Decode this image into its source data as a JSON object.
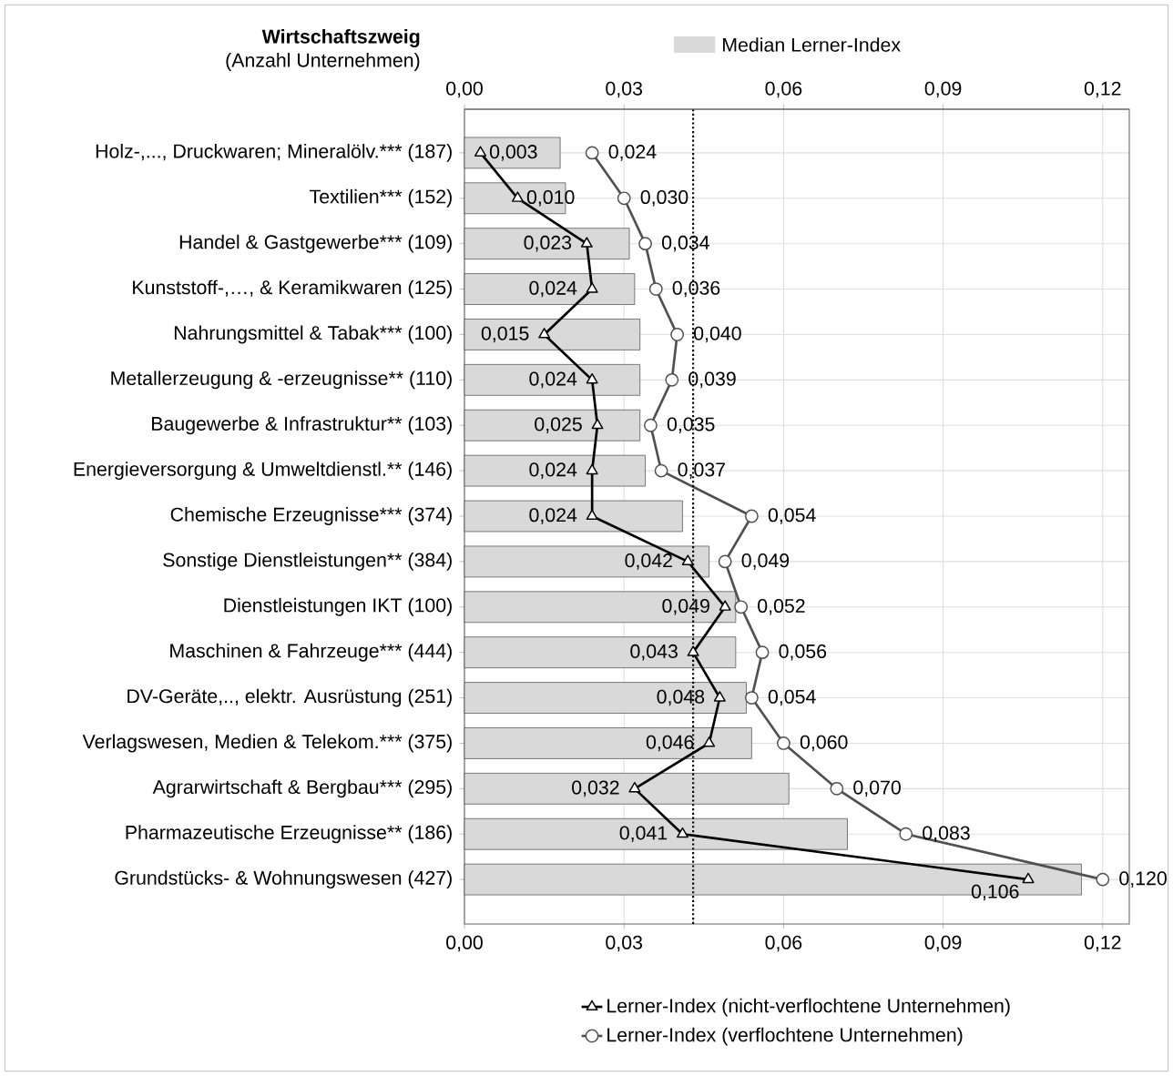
{
  "chart_data": {
    "type": "bar",
    "orientation": "horizontal",
    "ylabel": "Wirtschaftszweig",
    "annotations": [
      "(Anzahl Unternehmen)"
    ],
    "categories": [
      "Holz-,..., Druckwaren; Mineralölv.*** (187)",
      "Textilien*** (152)",
      "Handel & Gastgewerbe*** (109)",
      "Kunststoff-,…, & Keramikwaren (125)",
      "Nahrungsmittel & Tabak*** (100)",
      "Metallerzeugung & -erzeugnisse** (110)",
      "Baugewerbe & Infrastruktur** (103)",
      "Energieversorgung & Umweltdienstl.** (146)",
      "Chemische Erzeugnisse*** (374)",
      "Sonstige Dienstleistungen** (384)",
      "Dienstleistungen IKT (100)",
      "Maschinen & Fahrzeuge*** (444)",
      "DV-Geräte,.., elektr. Ausrüstung (251)",
      "Verlagswesen, Medien & Telekom.*** (375)",
      "Agrarwirtschaft & Bergbau*** (295)",
      "Pharmazeutische Erzeugnisse** (186)",
      "Grundstücks- & Wohnungswesen (427)"
    ],
    "series": [
      {
        "name": "Median Lerner-Index",
        "type": "bar",
        "color": "#d9d9d9",
        "values": [
          0.018,
          0.019,
          0.031,
          0.032,
          0.033,
          0.033,
          0.033,
          0.034,
          0.041,
          0.046,
          0.051,
          0.051,
          0.053,
          0.054,
          0.061,
          0.072,
          0.116
        ]
      },
      {
        "name": "Lerner-Index (nicht-verflochtene Unternehmen)",
        "type": "line",
        "color": "#000000",
        "marker": "triangle",
        "values": [
          0.003,
          0.01,
          0.023,
          0.024,
          0.015,
          0.024,
          0.025,
          0.024,
          0.024,
          0.042,
          0.049,
          0.043,
          0.048,
          0.046,
          0.032,
          0.041,
          0.106
        ],
        "value_labels": [
          "0,003",
          "0,010",
          "0,023",
          "0,024",
          "0,015",
          "0,024",
          "0,025",
          "0,024",
          "0,024",
          "0,042",
          "0,049",
          "0,043",
          "0,048",
          "0,046",
          "0,032",
          "0,041",
          "0,106"
        ]
      },
      {
        "name": "Lerner-Index (verflochtene Unternehmen)",
        "type": "line",
        "color": "#505050",
        "marker": "circle",
        "values": [
          0.024,
          0.03,
          0.034,
          0.036,
          0.04,
          0.039,
          0.035,
          0.037,
          0.054,
          0.049,
          0.052,
          0.056,
          0.054,
          0.06,
          0.07,
          0.083,
          0.12
        ],
        "value_labels": [
          "0,024",
          "0,030",
          "0,034",
          "0,036",
          "0,040",
          "0,039",
          "0,035",
          "0,037",
          "0,054",
          "0,049",
          "0,052",
          "0,056",
          "0,054",
          "0,060",
          "0,070",
          "0,083",
          "0,120"
        ]
      }
    ],
    "xlim": [
      0,
      0.125
    ],
    "xticks": [
      {
        "value": 0,
        "label": "0,00"
      },
      {
        "value": 0.03,
        "label": "0,03"
      },
      {
        "value": 0.06,
        "label": "0,06"
      },
      {
        "value": 0.09,
        "label": "0,09"
      },
      {
        "value": 0.12,
        "label": "0,12"
      }
    ],
    "x2lim": [
      0,
      0.125
    ],
    "x2ticks": [
      {
        "value": 0,
        "label": "0,00"
      },
      {
        "value": 0.03,
        "label": "0,03"
      },
      {
        "value": 0.06,
        "label": "0,06"
      },
      {
        "value": 0.09,
        "label": "0,09"
      },
      {
        "value": 0.12,
        "label": "0,12"
      }
    ],
    "ref_lines": [
      {
        "axis": "x",
        "value": 0.043,
        "line_style": "dotted",
        "color": "#000000"
      }
    ],
    "grid": true,
    "legend": "bottom"
  }
}
